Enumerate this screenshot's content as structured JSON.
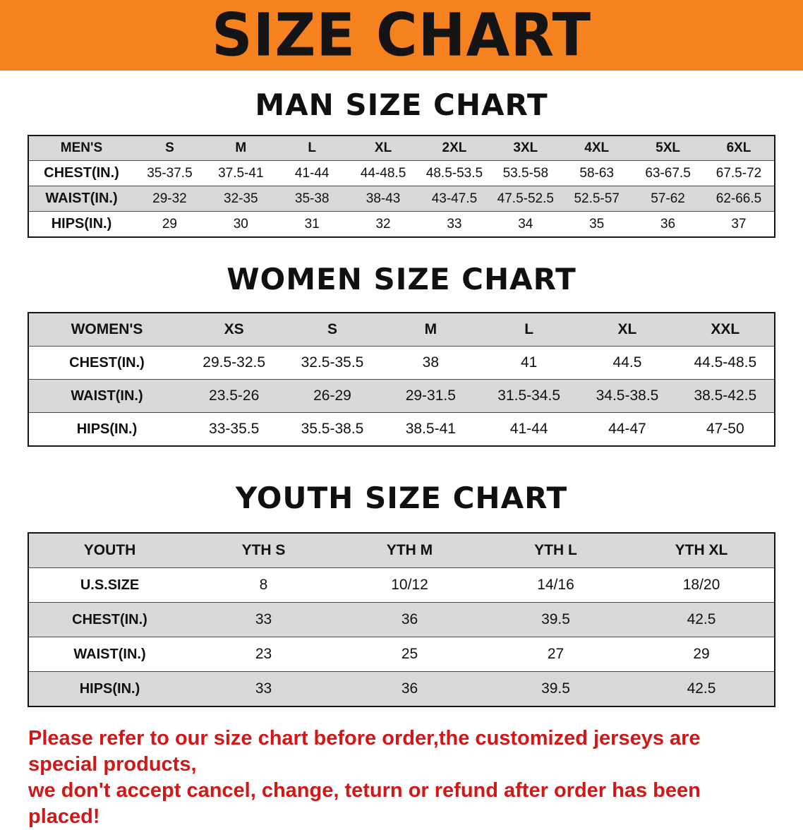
{
  "banner": {
    "title": "SIZE CHART"
  },
  "colors": {
    "banner_orange": "#f5821f",
    "table_header_black": "#171717",
    "row_alternate_gray": "#d9d9d9",
    "note_red": "#d01818"
  },
  "men": {
    "heading": "MAN SIZE CHART",
    "table": {
      "header": [
        "MEN'S",
        "S",
        "M",
        "L",
        "XL",
        "2XL",
        "3XL",
        "4XL",
        "5XL",
        "6XL"
      ],
      "rows": [
        [
          "CHEST(IN.)",
          "35-37.5",
          "37.5-41",
          "41-44",
          "44-48.5",
          "48.5-53.5",
          "53.5-58",
          "58-63",
          "63-67.5",
          "67.5-72"
        ],
        [
          "WAIST(IN.)",
          "29-32",
          "32-35",
          "35-38",
          "38-43",
          "43-47.5",
          "47.5-52.5",
          "52.5-57",
          "57-62",
          "62-66.5"
        ],
        [
          "HIPS(IN.)",
          "29",
          "30",
          "31",
          "32",
          "33",
          "34",
          "35",
          "36",
          "37"
        ]
      ]
    }
  },
  "women": {
    "heading": "WOMEN SIZE CHART",
    "table": {
      "header": [
        "WOMEN'S",
        "XS",
        "S",
        "M",
        "L",
        "XL",
        "XXL"
      ],
      "rows": [
        [
          "CHEST(IN.)",
          "29.5-32.5",
          "32.5-35.5",
          "38",
          "41",
          "44.5",
          "44.5-48.5"
        ],
        [
          "WAIST(IN.)",
          "23.5-26",
          "26-29",
          "29-31.5",
          "31.5-34.5",
          "34.5-38.5",
          "38.5-42.5"
        ],
        [
          "HIPS(IN.)",
          "33-35.5",
          "35.5-38.5",
          "38.5-41",
          "41-44",
          "44-47",
          "47-50"
        ]
      ]
    }
  },
  "youth": {
    "heading": "YOUTH SIZE CHART",
    "table": {
      "header": [
        "YOUTH",
        "YTH S",
        "YTH M",
        "YTH L",
        "YTH XL"
      ],
      "rows": [
        [
          "U.S.SIZE",
          "8",
          "10/12",
          "14/16",
          "18/20"
        ],
        [
          "CHEST(IN.)",
          "33",
          "36",
          "39.5",
          "42.5"
        ],
        [
          "WAIST(IN.)",
          "23",
          "25",
          "27",
          "29"
        ],
        [
          "HIPS(IN.)",
          "33",
          "36",
          "39.5",
          "42.5"
        ]
      ]
    }
  },
  "note": {
    "line1": "Please refer to our size chart before order,the customized jerseys are special products,",
    "line2": "we don't accept cancel, change, teturn or refund after order has been placed!"
  }
}
